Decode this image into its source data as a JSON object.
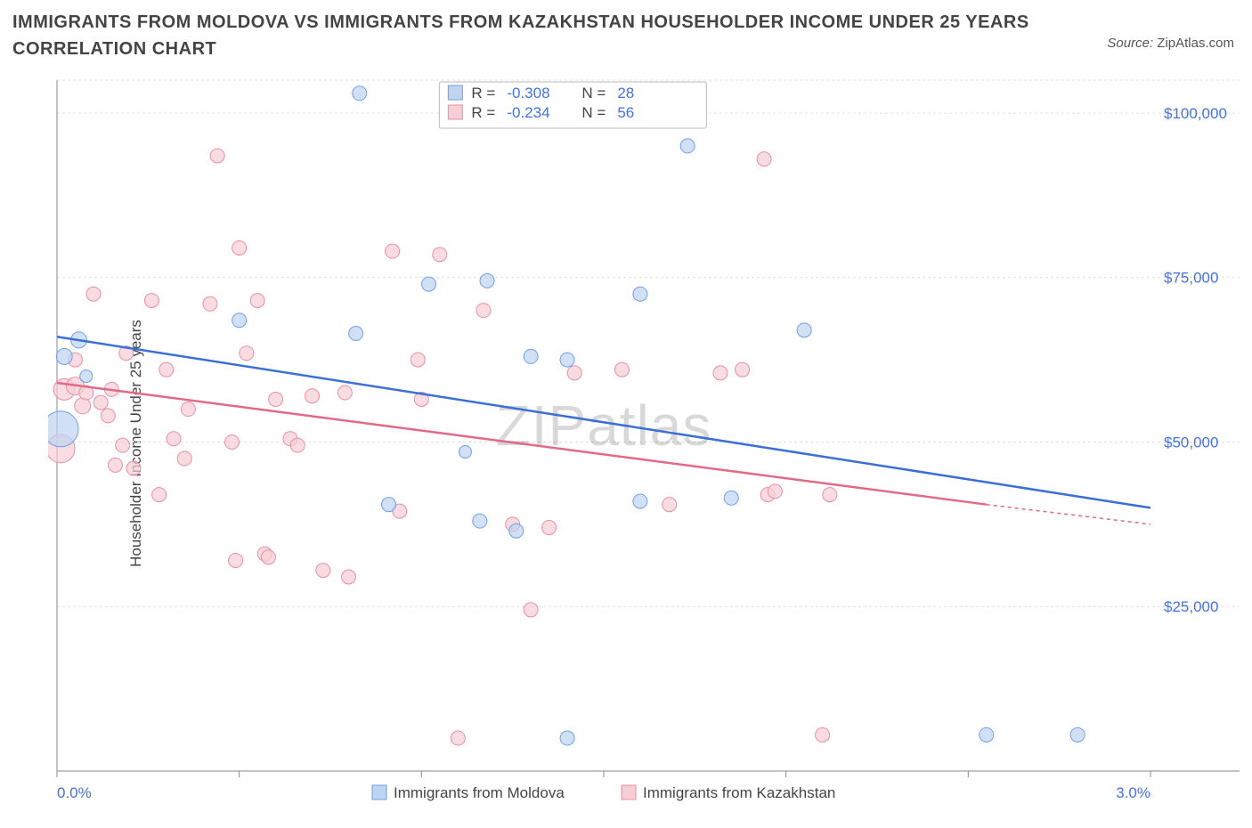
{
  "title": "IMMIGRANTS FROM MOLDOVA VS IMMIGRANTS FROM KAZAKHSTAN HOUSEHOLDER INCOME UNDER 25 YEARS CORRELATION CHART",
  "source_label": "Source:",
  "source_value": "ZipAtlas.com",
  "ylabel": "Householder Income Under 25 years",
  "chart": {
    "type": "scatter-correlation",
    "bg": "#ffffff",
    "grid_color": "#dddddd",
    "axis_color": "#888888",
    "x": {
      "min": 0.0,
      "max": 3.0,
      "ticks": [
        0.0,
        0.5,
        1.0,
        1.5,
        2.0,
        2.5,
        3.0
      ],
      "labels_shown": [
        "0.0%",
        "3.0%"
      ],
      "unit": "%"
    },
    "y": {
      "min": 0,
      "max": 105000,
      "ticks": [
        25000,
        50000,
        75000,
        100000
      ],
      "labels": [
        "$25,000",
        "$50,000",
        "$75,000",
        "$100,000"
      ]
    },
    "watermark": {
      "line1": "ZIP",
      "line2": "atlas"
    },
    "series": [
      {
        "name": "Immigrants from Moldova",
        "color_fill": "#bfd3f2",
        "color_stroke": "#6f9fe8",
        "trend_color": "#3b6fd6",
        "R": -0.308,
        "N": 28,
        "trend": {
          "x1": 0.0,
          "y1": 66000,
          "x2": 3.0,
          "y2": 40000
        },
        "points": [
          {
            "x": 0.01,
            "y": 52000,
            "r": 20
          },
          {
            "x": 0.02,
            "y": 63000,
            "r": 9
          },
          {
            "x": 0.06,
            "y": 65500,
            "r": 9
          },
          {
            "x": 0.08,
            "y": 60000,
            "r": 7
          },
          {
            "x": 0.5,
            "y": 68500,
            "r": 8
          },
          {
            "x": 0.83,
            "y": 103000,
            "r": 8
          },
          {
            "x": 0.82,
            "y": 66500,
            "r": 8
          },
          {
            "x": 0.91,
            "y": 40500,
            "r": 8
          },
          {
            "x": 1.02,
            "y": 74000,
            "r": 8
          },
          {
            "x": 1.12,
            "y": 48500,
            "r": 7
          },
          {
            "x": 1.16,
            "y": 38000,
            "r": 8
          },
          {
            "x": 1.18,
            "y": 74500,
            "r": 8
          },
          {
            "x": 1.26,
            "y": 36500,
            "r": 8
          },
          {
            "x": 1.3,
            "y": 63000,
            "r": 8
          },
          {
            "x": 1.4,
            "y": 62500,
            "r": 8
          },
          {
            "x": 1.4,
            "y": 5000,
            "r": 8
          },
          {
            "x": 1.6,
            "y": 72500,
            "r": 8
          },
          {
            "x": 1.6,
            "y": 41000,
            "r": 8
          },
          {
            "x": 1.73,
            "y": 95000,
            "r": 8
          },
          {
            "x": 1.85,
            "y": 41500,
            "r": 8
          },
          {
            "x": 2.05,
            "y": 67000,
            "r": 8
          },
          {
            "x": 2.55,
            "y": 5500,
            "r": 8
          },
          {
            "x": 2.8,
            "y": 5500,
            "r": 8
          }
        ]
      },
      {
        "name": "Immigrants from Kazakhstan",
        "color_fill": "#f7cdd6",
        "color_stroke": "#e98fa3",
        "trend_color": "#e06a87",
        "R": -0.234,
        "N": 56,
        "trend": {
          "x1": 0.0,
          "y1": 59000,
          "x2": 2.55,
          "y2": 40500
        },
        "trend_dash": {
          "x1": 2.55,
          "y1": 40500,
          "x2": 3.0,
          "y2": 37500
        },
        "points": [
          {
            "x": 0.01,
            "y": 49000,
            "r": 16
          },
          {
            "x": 0.02,
            "y": 58000,
            "r": 12
          },
          {
            "x": 0.05,
            "y": 58500,
            "r": 10
          },
          {
            "x": 0.07,
            "y": 55500,
            "r": 9
          },
          {
            "x": 0.05,
            "y": 62500,
            "r": 8
          },
          {
            "x": 0.08,
            "y": 57500,
            "r": 8
          },
          {
            "x": 0.1,
            "y": 72500,
            "r": 8
          },
          {
            "x": 0.12,
            "y": 56000,
            "r": 8
          },
          {
            "x": 0.14,
            "y": 54000,
            "r": 8
          },
          {
            "x": 0.15,
            "y": 58000,
            "r": 8
          },
          {
            "x": 0.16,
            "y": 46500,
            "r": 8
          },
          {
            "x": 0.18,
            "y": 49500,
            "r": 8
          },
          {
            "x": 0.19,
            "y": 63500,
            "r": 8
          },
          {
            "x": 0.21,
            "y": 46000,
            "r": 8
          },
          {
            "x": 0.26,
            "y": 71500,
            "r": 8
          },
          {
            "x": 0.28,
            "y": 42000,
            "r": 8
          },
          {
            "x": 0.3,
            "y": 61000,
            "r": 8
          },
          {
            "x": 0.32,
            "y": 50500,
            "r": 8
          },
          {
            "x": 0.35,
            "y": 47500,
            "r": 8
          },
          {
            "x": 0.36,
            "y": 55000,
            "r": 8
          },
          {
            "x": 0.42,
            "y": 71000,
            "r": 8
          },
          {
            "x": 0.44,
            "y": 93500,
            "r": 8
          },
          {
            "x": 0.48,
            "y": 50000,
            "r": 8
          },
          {
            "x": 0.49,
            "y": 32000,
            "r": 8
          },
          {
            "x": 0.5,
            "y": 79500,
            "r": 8
          },
          {
            "x": 0.52,
            "y": 63500,
            "r": 8
          },
          {
            "x": 0.55,
            "y": 71500,
            "r": 8
          },
          {
            "x": 0.57,
            "y": 33000,
            "r": 8
          },
          {
            "x": 0.58,
            "y": 32500,
            "r": 8
          },
          {
            "x": 0.6,
            "y": 56500,
            "r": 8
          },
          {
            "x": 0.64,
            "y": 50500,
            "r": 8
          },
          {
            "x": 0.66,
            "y": 49500,
            "r": 8
          },
          {
            "x": 0.7,
            "y": 57000,
            "r": 8
          },
          {
            "x": 0.73,
            "y": 30500,
            "r": 8
          },
          {
            "x": 0.79,
            "y": 57500,
            "r": 8
          },
          {
            "x": 0.8,
            "y": 29500,
            "r": 8
          },
          {
            "x": 0.92,
            "y": 79000,
            "r": 8
          },
          {
            "x": 0.94,
            "y": 39500,
            "r": 8
          },
          {
            "x": 0.99,
            "y": 62500,
            "r": 8
          },
          {
            "x": 1.0,
            "y": 56500,
            "r": 8
          },
          {
            "x": 1.05,
            "y": 78500,
            "r": 8
          },
          {
            "x": 1.1,
            "y": 5000,
            "r": 8
          },
          {
            "x": 1.17,
            "y": 70000,
            "r": 8
          },
          {
            "x": 1.25,
            "y": 37500,
            "r": 8
          },
          {
            "x": 1.3,
            "y": 24500,
            "r": 8
          },
          {
            "x": 1.35,
            "y": 37000,
            "r": 8
          },
          {
            "x": 1.42,
            "y": 60500,
            "r": 8
          },
          {
            "x": 1.55,
            "y": 61000,
            "r": 8
          },
          {
            "x": 1.68,
            "y": 40500,
            "r": 8
          },
          {
            "x": 1.82,
            "y": 60500,
            "r": 8
          },
          {
            "x": 1.88,
            "y": 61000,
            "r": 8
          },
          {
            "x": 1.94,
            "y": 93000,
            "r": 8
          },
          {
            "x": 1.95,
            "y": 42000,
            "r": 8
          },
          {
            "x": 1.97,
            "y": 42500,
            "r": 8
          },
          {
            "x": 2.1,
            "y": 5500,
            "r": 8
          },
          {
            "x": 2.12,
            "y": 42000,
            "r": 8
          }
        ]
      }
    ],
    "stats_box": {
      "R_label": "R =",
      "N_label": "N ="
    },
    "bottom_legend": true
  }
}
